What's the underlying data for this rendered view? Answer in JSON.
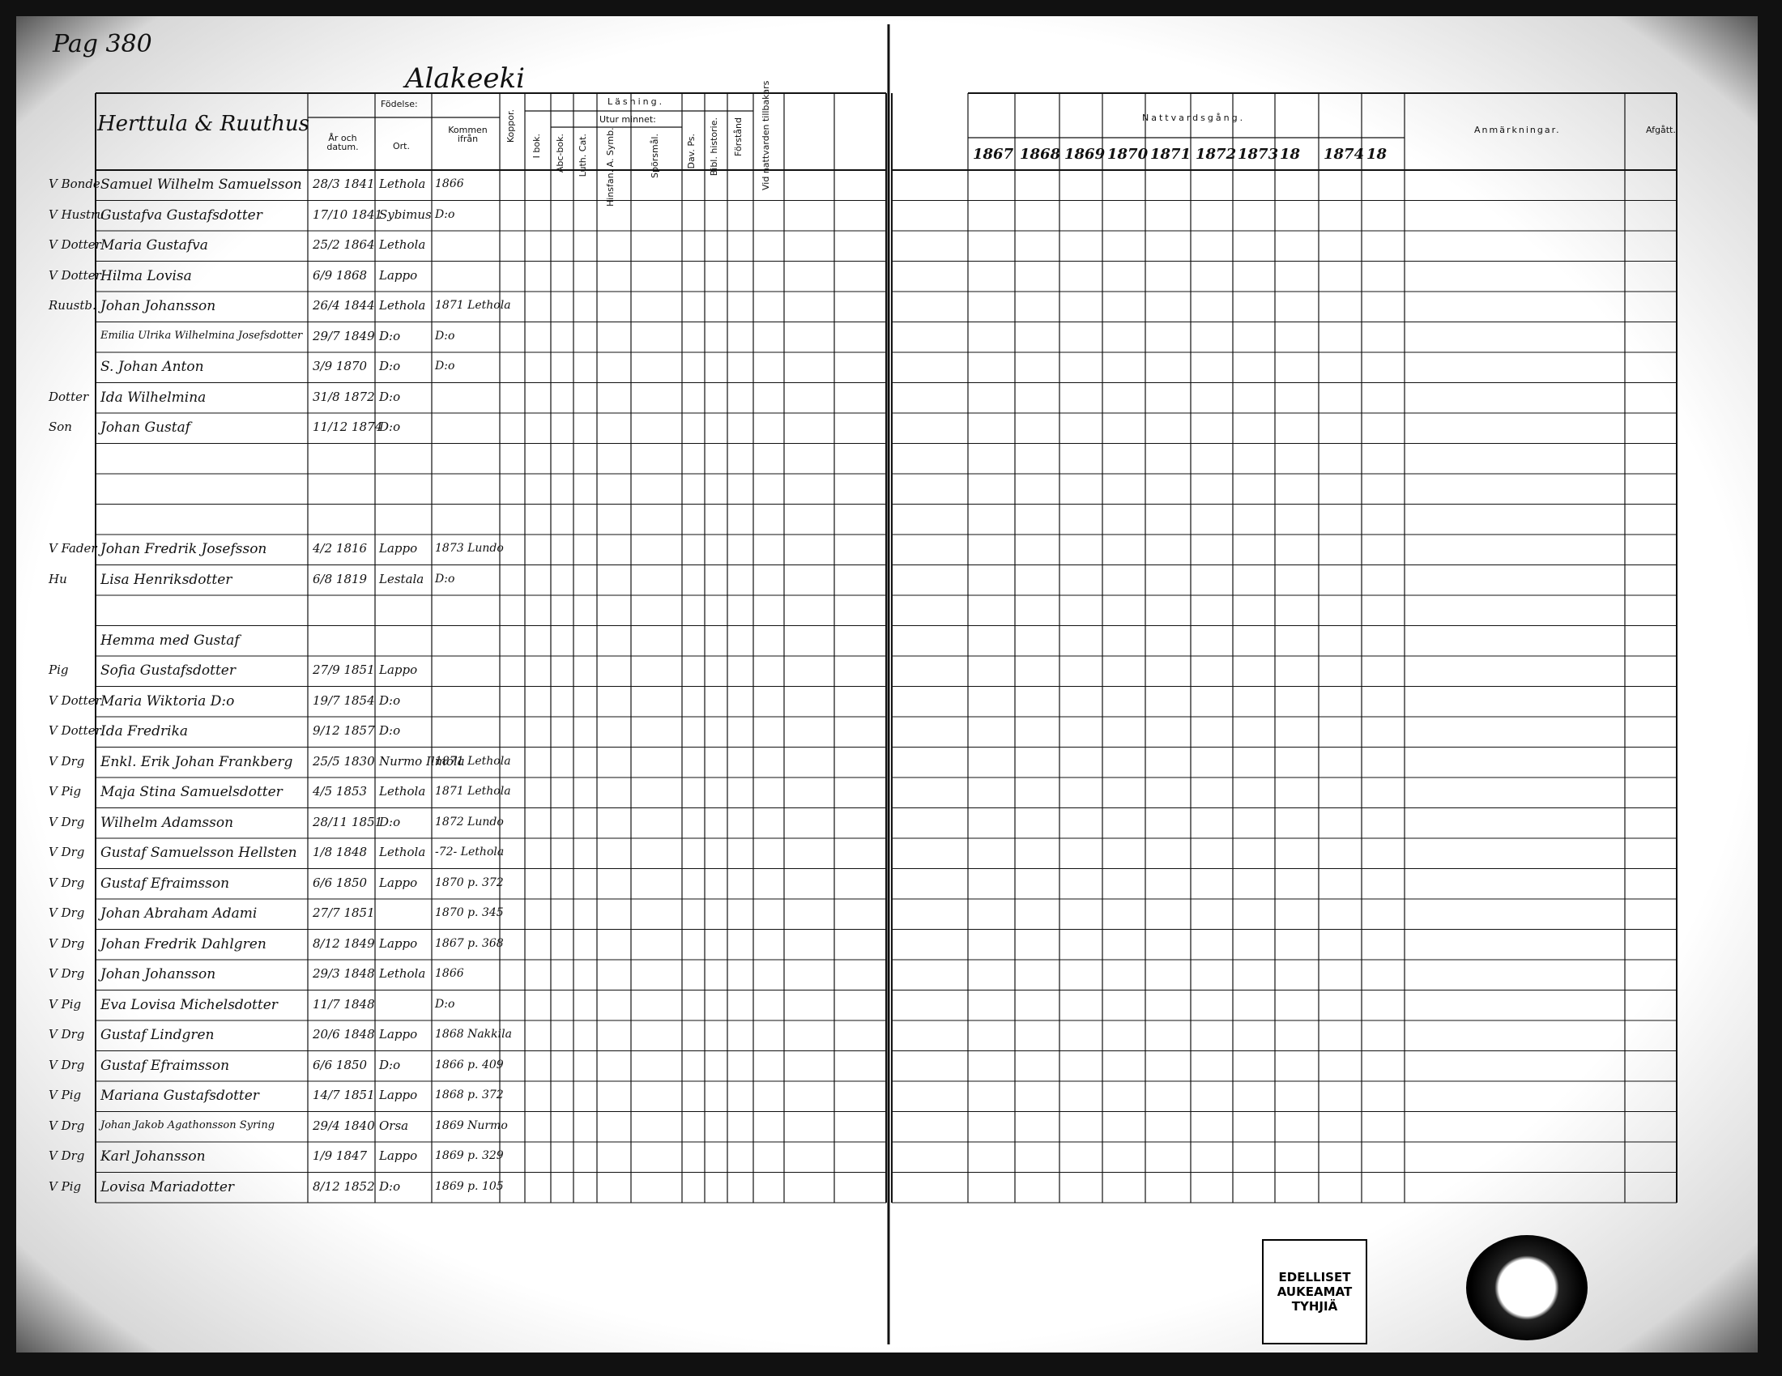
{
  "page_number": "Pag 380",
  "village": "Alakeeki",
  "household": "Herttula & Ruuthus",
  "left_headers": {
    "birth": "Födelse:",
    "year_date": "År och datum.",
    "place": "Ort.",
    "from": "Kommen ifrån",
    "pox": "Koppor.",
    "reading": "Läsning.",
    "book": "I bok.",
    "memory": "Utur minnet:",
    "abc": "Abc-bok.",
    "cat": "Luth. Cat.",
    "symb": "Hinsfan. A. Symb.",
    "questions": "Spörsmål.",
    "psalms": "Dav. Ps.",
    "bible": "Bibl. historie.",
    "understanding": "Förstånd",
    "communion": "Vid nattvarden tillbakars"
  },
  "right_headers": {
    "communion": "Nattvardsgång.",
    "years": [
      "1867",
      "1868",
      "1869",
      "1870",
      "1871",
      "1872",
      "1873",
      "18",
      "1874",
      "18"
    ],
    "remarks": "Anmärkningar.",
    "left": "Afgått."
  },
  "rows": [
    {
      "status": "V Bonde",
      "name": "Samuel Wilhelm Samuelsson",
      "born": "28/3 1841",
      "place": "Lethola",
      "from": "1866"
    },
    {
      "status": "V Hustru",
      "name": "Gustafva Gustafsdotter",
      "born": "17/10 1841",
      "place": "Sybimus",
      "from": "D:o"
    },
    {
      "status": "V Dotter",
      "name": "Maria Gustafva",
      "born": "25/2 1864",
      "place": "Lethola"
    },
    {
      "status": "V Dotter",
      "name": "Hilma Lovisa",
      "born": "6/9 1868",
      "place": "Lappo"
    },
    {
      "status": "Ruustb.",
      "name": "Johan Johansson",
      "born": "26/4 1844",
      "place": "Lethola",
      "from": "1871 Lethola"
    },
    {
      "name": "Emilia Ulrika Wilhelmina Josefsdotter",
      "born": "29/7 1849",
      "place": "D:o",
      "from": "D:o"
    },
    {
      "name": "S. Johan Anton",
      "born": "3/9 1870",
      "place": "D:o",
      "from": "D:o"
    },
    {
      "status": "Dotter",
      "name": "Ida Wilhelmina",
      "born": "31/8 1872",
      "place": "D:o"
    },
    {
      "status": "Son",
      "name": "Johan Gustaf",
      "born": "11/12 1874",
      "place": "D:o"
    },
    null,
    null,
    null,
    {
      "status": "V Fader",
      "name": "Johan Fredrik Josefsson",
      "born": "4/2 1816",
      "place": "Lappo",
      "from": "1873 Lundo"
    },
    {
      "status": "Hu",
      "name": "Lisa Henriksdotter",
      "born": "6/8 1819",
      "place": "Lestala",
      "from": "D:o"
    },
    null,
    {
      "name": "Hemma med Gustaf"
    },
    {
      "status": "Pig",
      "name": "Sofia Gustafsdotter",
      "born": "27/9 1851",
      "place": "Lappo"
    },
    {
      "status": "V Dotter",
      "name": "Maria Wiktoria D:o",
      "born": "19/7 1854",
      "place": "D:o"
    },
    {
      "status": "V Dotter",
      "name": "Ida Fredrika",
      "born": "9/12 1857",
      "place": "D:o"
    },
    {
      "status": "V Drg",
      "name": "Enkl. Erik Johan Frankberg",
      "born": "25/5 1830",
      "place": "Nurmo Ilmola",
      "from": "1871 Lethola"
    },
    {
      "status": "V Pig",
      "name": "Maja Stina Samuelsdotter",
      "born": "4/5 1853",
      "place": "Lethola",
      "from": "1871 Lethola"
    },
    {
      "status": "V Drg",
      "name": "Wilhelm Adamsson",
      "born": "28/11 1851",
      "place": "D:o",
      "from": "1872 Lundo"
    },
    {
      "status": "V Drg",
      "name": "Gustaf Samuelsson Hellsten",
      "born": "1/8 1848",
      "place": "Lethola",
      "from": "-72- Lethola"
    },
    {
      "status": "V Drg",
      "name": "Gustaf Efraimsson",
      "born": "6/6 1850",
      "place": "Lappo",
      "from": "1870 p. 372"
    },
    {
      "status": "V Drg",
      "name": "Johan Abraham Adami",
      "born": "27/7 1851",
      "from": "1870 p. 345"
    },
    {
      "status": "V Drg",
      "name": "Johan Fredrik Dahlgren",
      "born": "8/12 1849",
      "place": "Lappo",
      "from": "1867 p. 368"
    },
    {
      "status": "V Drg",
      "name": "Johan Johansson",
      "born": "29/3 1848",
      "place": "Lethola",
      "from": "1866"
    },
    {
      "status": "V Pig",
      "name": "Eva Lovisa Michelsdotter",
      "born": "11/7 1848",
      "from": "D:o"
    },
    {
      "status": "V Drg",
      "name": "Gustaf Lindgren",
      "born": "20/6 1848",
      "place": "Lappo",
      "from": "1868 Nakkila"
    },
    {
      "status": "V Drg",
      "name": "Gustaf Efraimsson",
      "born": "6/6 1850",
      "place": "D:o",
      "from": "1866 p. 409"
    },
    {
      "status": "V Pig",
      "name": "Mariana Gustafsdotter",
      "born": "14/7 1851",
      "place": "Lappo",
      "from": "1868 p. 372"
    },
    {
      "status": "V Drg",
      "name": "Johan Jakob Agathonsson Syring",
      "born": "29/4 1840",
      "place": "Orsa",
      "from": "1869 Nurmo"
    },
    {
      "status": "V Drg",
      "name": "Karl Johansson",
      "born": "1/9 1847",
      "place": "Lappo",
      "from": "1869 p. 329"
    },
    {
      "status": "V Pig",
      "name": "Lovisa Mariadotter",
      "born": "8/12 1852",
      "place": "D:o",
      "from": "1869 p. 105"
    }
  ],
  "stamp": "EDELLISET AUKEAMAT TYHJIÄ"
}
